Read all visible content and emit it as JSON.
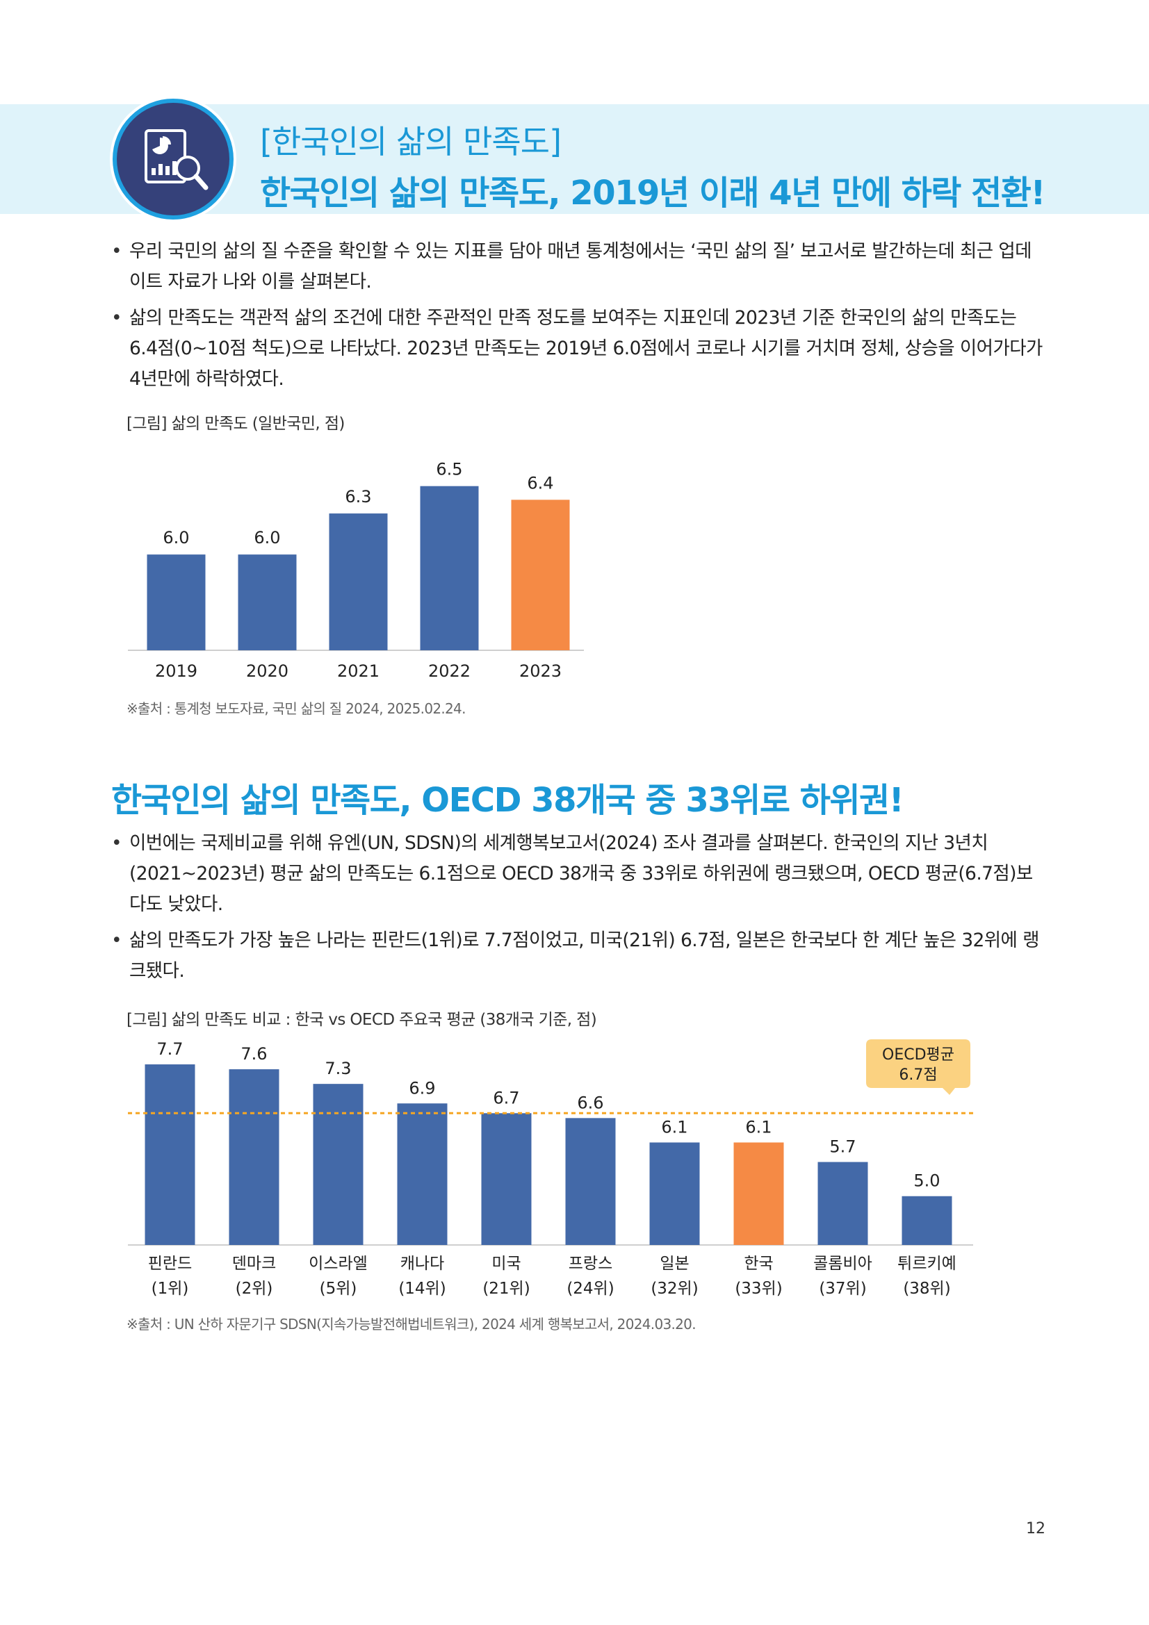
{
  "header": {
    "kicker": "[한국인의 삶의 만족도]",
    "title": "한국인의 삶의 만족도, 2019년 이래 4년 만에 하락 전환!",
    "icon": "report-analysis-icon"
  },
  "section1": {
    "bullets": [
      "우리 국민의 삶의 질 수준을 확인할 수 있는 지표를 담아 매년 통계청에서는 ‘국민 삶의 질’ 보고서로 발간하는데 최근 업데이트 자료가 나와 이를 살펴본다.",
      "삶의 만족도는 객관적 삶의 조건에 대한 주관적인 만족 정도를 보여주는 지표인데 2023년 기준 한국인의 삶의 만족도는 6.4점(0~10점 척도)으로 나타났다. 2023년 만족도는 2019년 6.0점에서 코로나 시기를 거치며 정체, 상승을 이어가다가 4년만에 하락하였다."
    ],
    "figure_caption": "[그림] 삶의 만족도 (일반국민, 점)",
    "source": "※출처 : 통계청 보도자료, 국민 삶의 질 2024, 2025.02.24."
  },
  "section2": {
    "title": "한국인의 삶의 만족도, OECD 38개국 중 33위로 하위권!",
    "bullets": [
      "이번에는 국제비교를 위해 유엔(UN, SDSN)의 세계행복보고서(2024) 조사 결과를 살펴본다. 한국인의 지난 3년치(2021~2023년) 평균 삶의 만족도는 6.1점으로 OECD 38개국 중 33위로 하위권에 랭크됐으며, OECD 평균(6.7점)보다도 낮았다.",
      "삶의 만족도가 가장 높은 나라는 핀란드(1위)로 7.7점이었고, 미국(21위) 6.7점, 일본은 한국보다 한 계단 높은 32위에 랭크됐다."
    ],
    "figure_caption": "[그림] 삶의 만족도 비교 : 한국 vs OECD 주요국 평균 (38개국 기준, 점)",
    "source": "※출처 : UN 산하 자문기구 SDSN(지속가능발전해법네트워크), 2024 세계 행복보고서, 2024.03.20."
  },
  "colors": {
    "bar": "#4369a8",
    "highlight": "#f58a45",
    "accent": "#1a98d6",
    "average_line": "#f5a623",
    "callout": "#fbd281"
  },
  "chart_data": [
    {
      "type": "bar",
      "categories": [
        "2019",
        "2020",
        "2021",
        "2022",
        "2023"
      ],
      "values": [
        6.0,
        6.0,
        6.3,
        6.5,
        6.4
      ],
      "value_labels": [
        "6.0",
        "6.0",
        "6.3",
        "6.5",
        "6.4"
      ],
      "highlight_index": 4,
      "ylim": [
        5.3,
        6.6
      ]
    },
    {
      "type": "bar",
      "categories": [
        "핀란드",
        "덴마크",
        "이스라엘",
        "캐나다",
        "미국",
        "프랑스",
        "일본",
        "한국",
        "콜롬비아",
        "튀르키예"
      ],
      "ranks": [
        "(1위)",
        "(2위)",
        "(5위)",
        "(14위)",
        "(21위)",
        "(24위)",
        "(32위)",
        "(33위)",
        "(37위)",
        "(38위)"
      ],
      "values": [
        7.7,
        7.6,
        7.3,
        6.9,
        6.7,
        6.6,
        6.1,
        6.1,
        5.7,
        5.0
      ],
      "value_labels": [
        "7.7",
        "7.6",
        "7.3",
        "6.9",
        "6.7",
        "6.6",
        "6.1",
        "6.1",
        "5.7",
        "5.0"
      ],
      "highlight_index": 7,
      "ylim": [
        4.0,
        7.9
      ],
      "reference_line": {
        "value": 6.7,
        "label_line1": "OECD평균",
        "label_line2": "6.7점"
      }
    }
  ],
  "page_number": "12"
}
